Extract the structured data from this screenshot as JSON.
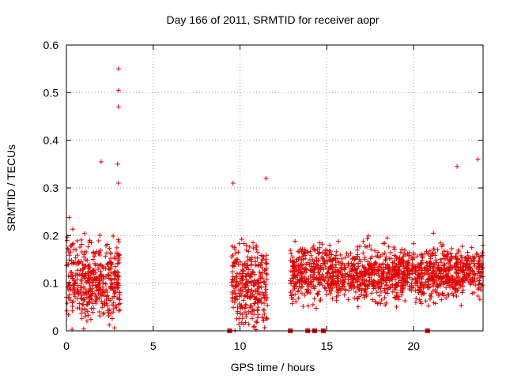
{
  "chart_data": {
    "type": "scatter",
    "title": "Day 166 of 2011, SRMTID for receiver aopr",
    "xlabel": "GPS time / hours",
    "ylabel": "SRMTID / TECUs",
    "xlim": [
      0,
      24
    ],
    "ylim": [
      0,
      0.6
    ],
    "xticks": [
      0,
      5,
      10,
      15,
      20
    ],
    "xtick_labels": [
      "0",
      "5",
      "10",
      "15",
      "20"
    ],
    "yticks": [
      0,
      0.1,
      0.2,
      0.3,
      0.4,
      0.5,
      0.6
    ],
    "ytick_labels": [
      "0",
      "0.1",
      "0.2",
      "0.3",
      "0.4",
      "0.5",
      "0.6"
    ],
    "grid": true,
    "marker": "+",
    "color": "#e00000",
    "segments": [
      {
        "x0": 0.0,
        "x1": 3.1,
        "median": 0.11,
        "spread": 0.06,
        "points": 420
      },
      {
        "x0": 9.5,
        "x1": 11.6,
        "median": 0.1,
        "spread": 0.06,
        "points": 300
      },
      {
        "x0": 12.9,
        "x1": 24.0,
        "median": 0.12,
        "spread": 0.04,
        "points": 1400
      }
    ],
    "highlighted_points": [
      {
        "x": 2.0,
        "y": 0.355
      },
      {
        "x": 3.0,
        "y": 0.55
      },
      {
        "x": 3.0,
        "y": 0.505
      },
      {
        "x": 3.0,
        "y": 0.47
      },
      {
        "x": 2.95,
        "y": 0.35
      },
      {
        "x": 3.0,
        "y": 0.31
      },
      {
        "x": 9.6,
        "y": 0.31
      },
      {
        "x": 11.5,
        "y": 0.32
      },
      {
        "x": 23.7,
        "y": 0.36
      },
      {
        "x": 22.5,
        "y": 0.345
      }
    ],
    "zero_markers_x": [
      9.4,
      12.9,
      13.9,
      14.3,
      14.8,
      20.8
    ]
  }
}
